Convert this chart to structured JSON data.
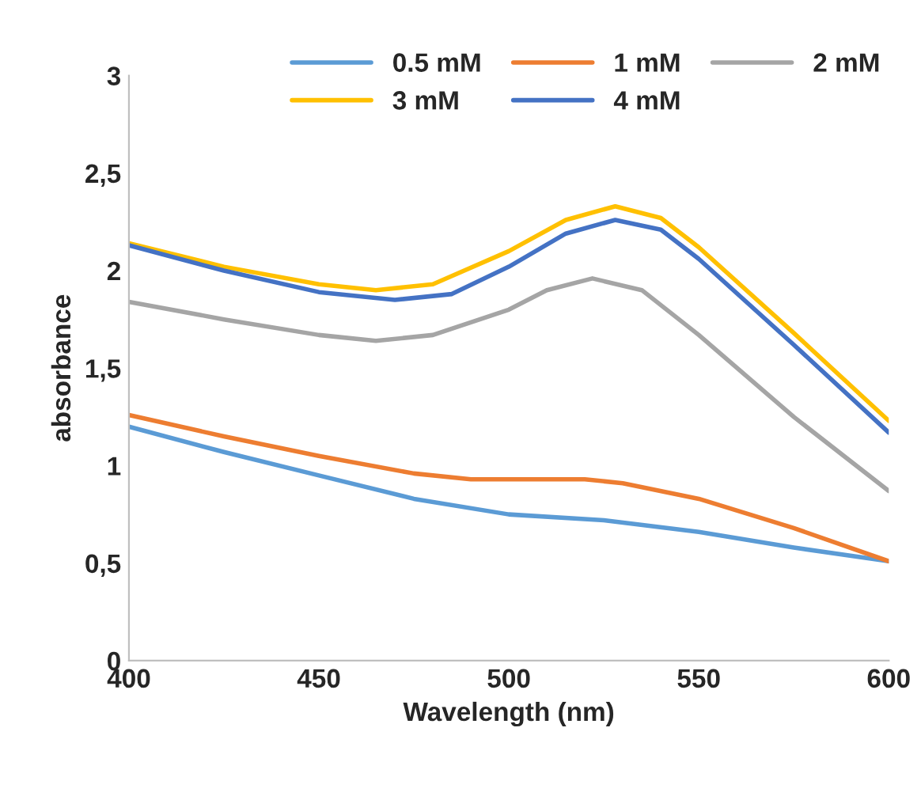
{
  "chart_data": {
    "type": "line",
    "xlabel": "Wavelength (nm)",
    "ylabel": "absorbance",
    "series": [
      {
        "name": "0.5 mM",
        "color": "#5b9bd5",
        "x": [
          400,
          425,
          450,
          475,
          500,
          525,
          550,
          575,
          600
        ],
        "values": [
          1.2,
          1.07,
          0.95,
          0.83,
          0.75,
          0.72,
          0.66,
          0.58,
          0.51
        ]
      },
      {
        "name": "1 mM",
        "color": "#ed7d31",
        "x": [
          400,
          425,
          450,
          475,
          490,
          500,
          520,
          530,
          550,
          575,
          600
        ],
        "values": [
          1.26,
          1.15,
          1.05,
          0.96,
          0.93,
          0.93,
          0.93,
          0.91,
          0.83,
          0.68,
          0.51
        ]
      },
      {
        "name": "2 mM",
        "color": "#a5a5a5",
        "x": [
          400,
          425,
          450,
          465,
          480,
          500,
          510,
          522,
          535,
          550,
          575,
          600
        ],
        "values": [
          1.84,
          1.75,
          1.67,
          1.64,
          1.67,
          1.8,
          1.9,
          1.96,
          1.9,
          1.67,
          1.25,
          0.87
        ]
      },
      {
        "name": "3 mM",
        "color": "#ffc000",
        "x": [
          400,
          425,
          450,
          465,
          480,
          500,
          515,
          528,
          540,
          550,
          575,
          600
        ],
        "values": [
          2.14,
          2.02,
          1.93,
          1.9,
          1.93,
          2.1,
          2.26,
          2.33,
          2.27,
          2.12,
          1.68,
          1.23
        ]
      },
      {
        "name": "4 mM",
        "color": "#4472c4",
        "x": [
          400,
          425,
          450,
          470,
          485,
          500,
          515,
          528,
          540,
          550,
          575,
          600
        ],
        "values": [
          2.13,
          2.0,
          1.89,
          1.85,
          1.88,
          2.02,
          2.19,
          2.26,
          2.21,
          2.06,
          1.62,
          1.17
        ]
      }
    ],
    "xlim": [
      400,
      600
    ],
    "xticks": [
      400,
      450,
      500,
      550,
      600
    ],
    "ylim": [
      0,
      3
    ],
    "yticks": [
      0,
      {
        "value": 0.5,
        "label": "0,5"
      },
      1,
      {
        "value": 1.5,
        "label": "1,5"
      },
      2,
      {
        "value": 2.5,
        "label": "2,5"
      },
      3
    ],
    "grid": false,
    "legend": "top right",
    "marker": "none",
    "line_style": "solid"
  }
}
